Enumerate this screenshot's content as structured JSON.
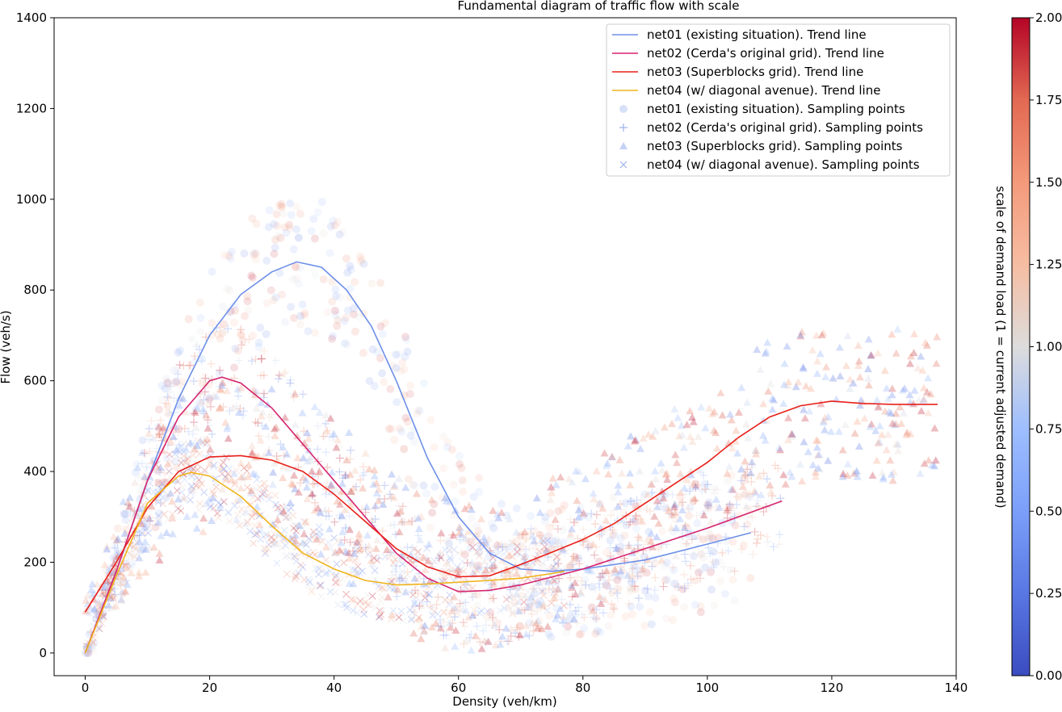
{
  "chart_data": {
    "type": "scatter",
    "title": "Fundamental diagram of traffic flow with scale",
    "xlabel": "Density (veh/km)",
    "ylabel": "Flow (veh/s)",
    "xlim": [
      -5,
      140
    ],
    "ylim": [
      -50,
      1400
    ],
    "x_ticks": [
      0,
      20,
      40,
      60,
      80,
      100,
      120,
      140
    ],
    "y_ticks": [
      0,
      200,
      400,
      600,
      800,
      1000,
      1200,
      1400
    ],
    "grid": false,
    "legend_position": "top-right",
    "colorbar": {
      "label": "scale of demand load (1 = current adjusted demand)",
      "min": 0,
      "max": 2,
      "ticks": [
        "0.00",
        "0.25",
        "0.50",
        "0.75",
        "1.00",
        "1.25",
        "1.50",
        "1.75",
        "2.00"
      ],
      "colormap": "coolwarm"
    },
    "trend_lines": [
      {
        "name": "net01 (existing situation). Trend line",
        "color": "#6d8fe8",
        "points": [
          [
            0,
            0
          ],
          [
            5,
            180
          ],
          [
            10,
            380
          ],
          [
            15,
            560
          ],
          [
            20,
            700
          ],
          [
            25,
            790
          ],
          [
            30,
            840
          ],
          [
            34,
            862
          ],
          [
            38,
            850
          ],
          [
            42,
            800
          ],
          [
            46,
            720
          ],
          [
            50,
            600
          ],
          [
            55,
            430
          ],
          [
            60,
            300
          ],
          [
            65,
            220
          ],
          [
            70,
            185
          ],
          [
            75,
            180
          ],
          [
            80,
            185
          ],
          [
            90,
            205
          ],
          [
            100,
            240
          ],
          [
            107,
            265
          ]
        ]
      },
      {
        "name": "net02 (Cerda's original grid). Trend line",
        "color": "#d6246e",
        "points": [
          [
            0,
            0
          ],
          [
            5,
            180
          ],
          [
            10,
            380
          ],
          [
            15,
            520
          ],
          [
            20,
            600
          ],
          [
            22,
            608
          ],
          [
            25,
            595
          ],
          [
            30,
            540
          ],
          [
            35,
            460
          ],
          [
            40,
            380
          ],
          [
            45,
            300
          ],
          [
            50,
            220
          ],
          [
            55,
            165
          ],
          [
            60,
            135
          ],
          [
            65,
            138
          ],
          [
            70,
            150
          ],
          [
            80,
            185
          ],
          [
            90,
            230
          ],
          [
            100,
            275
          ],
          [
            112,
            335
          ]
        ]
      },
      {
        "name": "net03 (Superblocks grid). Trend line",
        "color": "#e8201a",
        "points": [
          [
            0,
            90
          ],
          [
            5,
            200
          ],
          [
            10,
            320
          ],
          [
            15,
            400
          ],
          [
            20,
            432
          ],
          [
            25,
            435
          ],
          [
            30,
            425
          ],
          [
            35,
            400
          ],
          [
            40,
            350
          ],
          [
            45,
            290
          ],
          [
            50,
            230
          ],
          [
            55,
            190
          ],
          [
            60,
            168
          ],
          [
            65,
            170
          ],
          [
            70,
            195
          ],
          [
            75,
            222
          ],
          [
            80,
            250
          ],
          [
            85,
            285
          ],
          [
            90,
            330
          ],
          [
            95,
            375
          ],
          [
            100,
            420
          ],
          [
            105,
            475
          ],
          [
            110,
            520
          ],
          [
            115,
            545
          ],
          [
            120,
            555
          ],
          [
            125,
            550
          ],
          [
            130,
            548
          ],
          [
            137,
            548
          ]
        ]
      },
      {
        "name": "net04 (w/ diagonal avenue). Trend line",
        "color": "#f0b41c",
        "points": [
          [
            0,
            0
          ],
          [
            5,
            170
          ],
          [
            10,
            330
          ],
          [
            15,
            390
          ],
          [
            17,
            398
          ],
          [
            20,
            390
          ],
          [
            25,
            345
          ],
          [
            30,
            280
          ],
          [
            35,
            220
          ],
          [
            40,
            185
          ],
          [
            45,
            160
          ],
          [
            50,
            150
          ],
          [
            55,
            152
          ],
          [
            60,
            156
          ],
          [
            65,
            160
          ],
          [
            70,
            165
          ],
          [
            75,
            175
          ],
          [
            77,
            180
          ]
        ]
      }
    ],
    "scatter_series": [
      {
        "name": "net01 (existing situation). Sampling points",
        "marker": "circle"
      },
      {
        "name": "net02 (Cerda's original grid). Sampling points",
        "marker": "plus"
      },
      {
        "name": "net03 (Superblocks grid). Sampling points",
        "marker": "triangle"
      },
      {
        "name": "net04 (w/ diagonal avenue). Sampling points",
        "marker": "x"
      }
    ]
  }
}
